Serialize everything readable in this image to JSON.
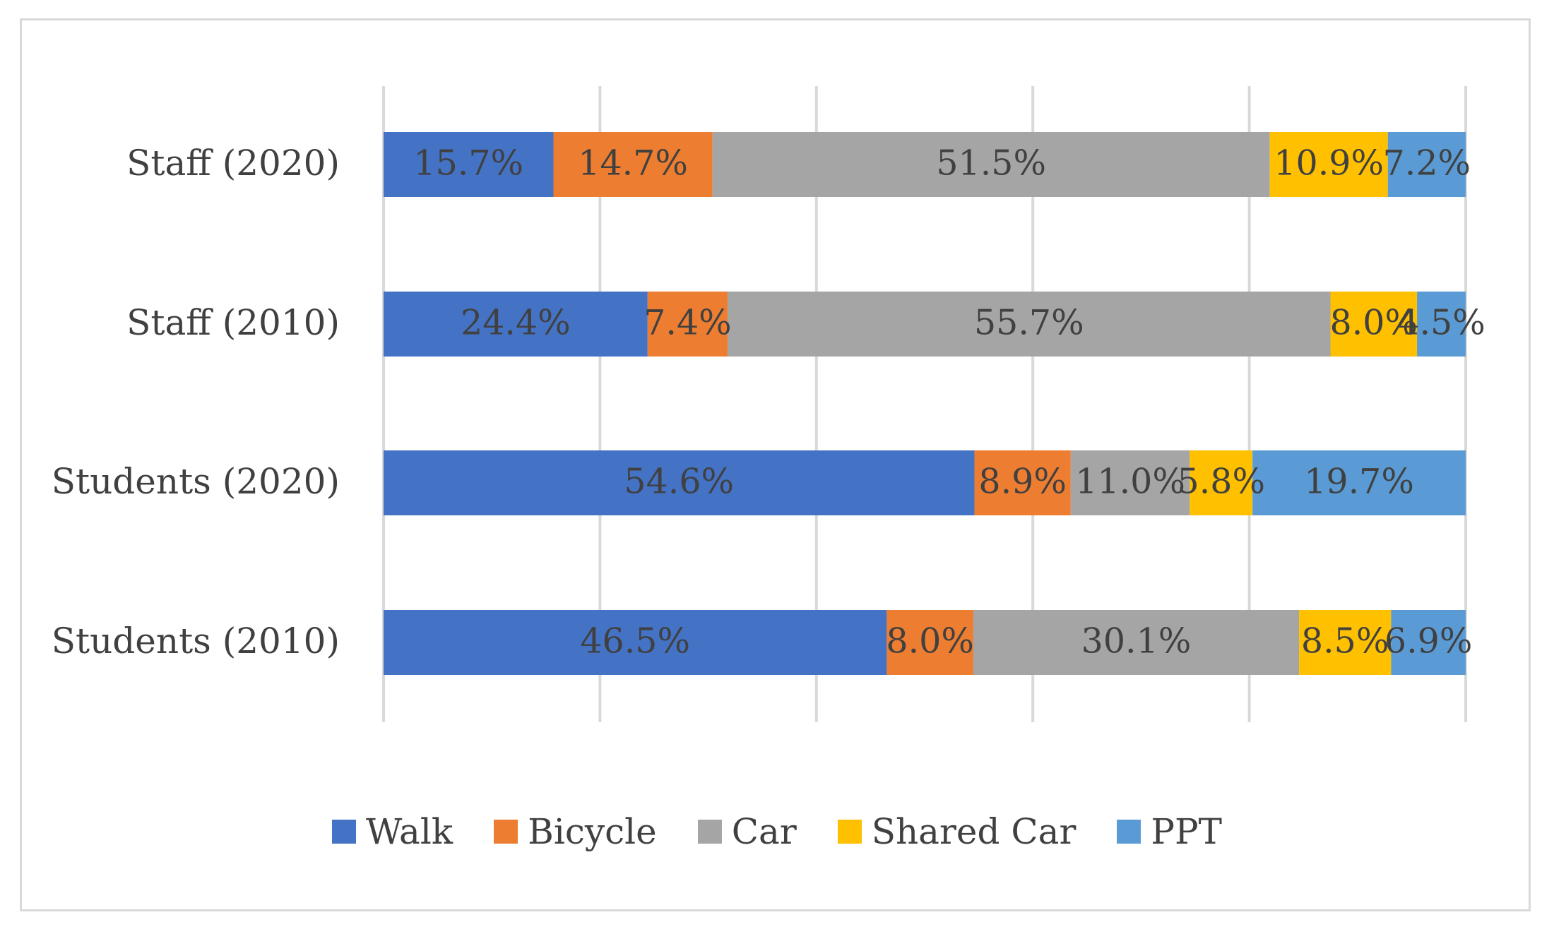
{
  "chart_data": {
    "type": "bar",
    "orientation": "horizontal",
    "stacked": true,
    "percent_stacked": true,
    "title": "",
    "xlabel": "",
    "ylabel": "",
    "xlim": [
      0,
      100
    ],
    "x_tick_count": 6,
    "grid": true,
    "legend_position": "bottom",
    "categories": [
      "Staff (2020)",
      "Staff (2010)",
      "Students (2020)",
      "Students (2010)"
    ],
    "series": [
      {
        "name": "Walk",
        "color": "#4472c4",
        "values": [
          15.7,
          24.4,
          54.6,
          46.5
        ],
        "labels": [
          "15.7%",
          "24.4%",
          "54.6%",
          "46.5%"
        ]
      },
      {
        "name": "Bicycle",
        "color": "#ed7d31",
        "values": [
          14.7,
          7.4,
          8.9,
          8.0
        ],
        "labels": [
          "14.7%",
          "7.4%",
          "8.9%",
          "8.0%"
        ]
      },
      {
        "name": "Car",
        "color": "#a5a5a5",
        "values": [
          51.5,
          55.7,
          11.0,
          30.1
        ],
        "labels": [
          "51.5%",
          "55.7%",
          "11.0%",
          "30.1%"
        ]
      },
      {
        "name": "Shared Car",
        "color": "#ffc000",
        "values": [
          10.9,
          8.0,
          5.8,
          8.5
        ],
        "labels": [
          "10.9%",
          "8.0%",
          "5.8%",
          "8.5%"
        ]
      },
      {
        "name": "PPT",
        "color": "#5b9bd5",
        "values": [
          7.2,
          4.5,
          19.7,
          6.9
        ],
        "labels": [
          "7.2%",
          "4.5%",
          "19.7%",
          "6.9%"
        ]
      }
    ]
  }
}
